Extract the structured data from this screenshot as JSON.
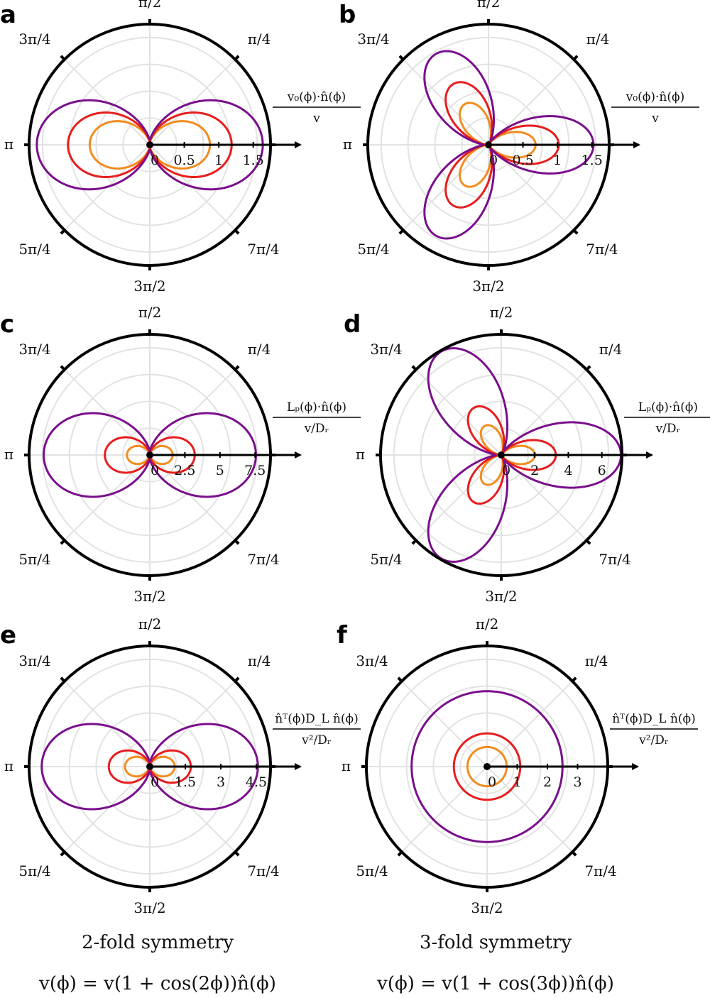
{
  "colors": {
    "orange": "#f28c1e",
    "red": "#e81d1d",
    "purple": "#7a0f8c",
    "grid": "#e2e2e2",
    "frame": "#000000"
  },
  "angle_labels": [
    "π/2",
    "π/4",
    "3π/4",
    "π",
    "5π/4",
    "7π/4",
    "3π/2"
  ],
  "captions": {
    "left_title": "2-fold symmetry",
    "right_title": "3-fold symmetry",
    "left_formula": "v(ϕ) = v(1 + cos(2ϕ))n̂(ϕ)",
    "right_formula": "v(ϕ) = v(1 + cos(3ϕ))n̂(ϕ)"
  },
  "chart_data": [
    {
      "panel": "a",
      "type": "polar-line",
      "symmetry": 2,
      "quantity_num": "v₀(ϕ)·n̂(ϕ)",
      "quantity_den": "v",
      "r_ticks": [
        "0",
        "0.5",
        "1",
        "1.5"
      ],
      "rmax": 1.75,
      "cmax": 1.5,
      "series": [
        {
          "color": "orange",
          "peak": 0.83
        },
        {
          "color": "red",
          "peak": 1.13
        },
        {
          "color": "purple",
          "peak": 1.56
        }
      ]
    },
    {
      "panel": "b",
      "type": "polar-line",
      "symmetry": 3,
      "quantity_num": "v₀(ϕ)·n̂(ϕ)",
      "quantity_den": "v",
      "r_ticks": [
        "0",
        "0.5",
        "1",
        "1.5"
      ],
      "rmax": 1.75,
      "cmax": 1.5,
      "series": [
        {
          "color": "orange",
          "peak": 0.65
        },
        {
          "color": "red",
          "peak": 0.97
        },
        {
          "color": "purple",
          "peak": 1.45
        }
      ]
    },
    {
      "panel": "c",
      "type": "polar-line",
      "symmetry": 2,
      "quantity_num": "Lₚ(ϕ)·n̂(ϕ)",
      "quantity_den": "v/Dᵣ",
      "r_ticks": [
        "0",
        "2.5",
        "5",
        "7.5"
      ],
      "rmax": 8.6,
      "cmax": 7.5,
      "series": [
        {
          "color": "orange",
          "peak": 1.55
        },
        {
          "color": "red",
          "peak": 3.05
        },
        {
          "color": "purple",
          "peak": 7.2
        }
      ]
    },
    {
      "panel": "d",
      "type": "polar-line",
      "symmetry": 3,
      "quantity_num": "Lₚ(ϕ)·n̂(ϕ)",
      "quantity_den": "v/Dᵣ",
      "r_ticks": [
        "0",
        "2",
        "4",
        "6"
      ],
      "rmax": 7.2,
      "cmax": 6,
      "series": [
        {
          "color": "orange",
          "peak": 1.9
        },
        {
          "color": "red",
          "peak": 3.1
        },
        {
          "color": "purple",
          "peak": 6.8
        }
      ]
    },
    {
      "panel": "e",
      "type": "polar-line",
      "symmetry": 2,
      "quantity_num": "n̂ᵀ(ϕ)D_L n̂(ϕ)",
      "quantity_den": "v²/Dᵣ",
      "r_ticks": [
        "0",
        "1.5",
        "3",
        "4.5"
      ],
      "rmax": 5.1,
      "cmax": 4.5,
      "series": [
        {
          "color": "orange",
          "peak": 1.0
        },
        {
          "color": "red",
          "peak": 1.65
        },
        {
          "color": "purple",
          "peak": 4.35
        }
      ]
    },
    {
      "panel": "f",
      "type": "polar-line",
      "symmetry": 3,
      "quantity_num": "n̂ᵀ(ϕ)D_L n̂(ϕ)",
      "quantity_den": "v²/Dᵣ",
      "r_ticks": [
        "0",
        "1",
        "2",
        "3"
      ],
      "rmax": 4.0,
      "cmax": 3,
      "series": [
        {
          "color": "orange",
          "peak": 0.65
        },
        {
          "color": "red",
          "peak": 1.1
        },
        {
          "color": "purple",
          "peak": 2.5
        }
      ]
    }
  ]
}
